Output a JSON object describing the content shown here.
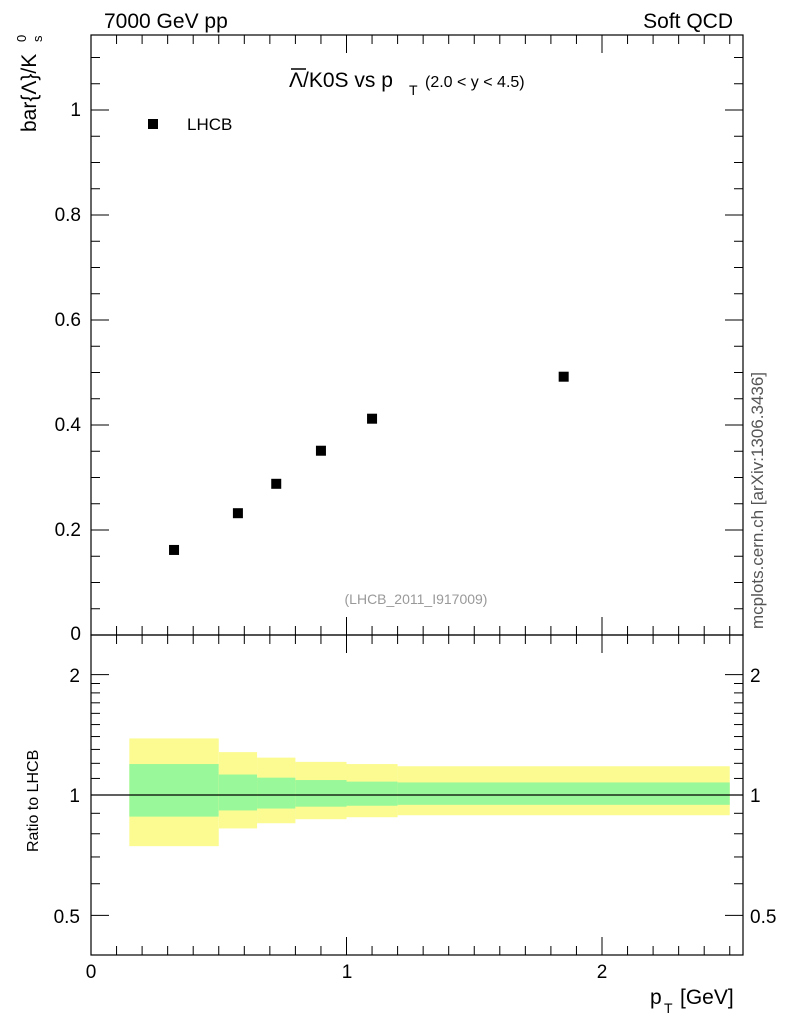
{
  "header": {
    "left": "7000 GeV pp",
    "right": "Soft QCD"
  },
  "side_label": "mcplots.cern.ch [arXiv:1306.3436]",
  "main_panel": {
    "title_main": "Λ/K0S vs p",
    "title_sub": "T",
    "title_range": "(2.0 < y < 4.5)",
    "ylabel": "bar{Λ}/K",
    "ylabel_sup": "0",
    "ylabel_sub": "s",
    "watermark": "(LHCB_2011_I917009)",
    "yticks": [
      "0",
      "0.2",
      "0.4",
      "0.6",
      "0.8",
      "1"
    ]
  },
  "ratio_panel": {
    "ylabel": "Ratio to LHCB",
    "yticks_left": [
      "0.5",
      "1",
      "2"
    ],
    "yticks_right": [
      "0.5",
      "1",
      "2"
    ]
  },
  "xaxis": {
    "label_main": "p",
    "label_sub": "T",
    "label_unit": "[GeV]",
    "ticks": [
      "0",
      "1",
      "2"
    ]
  },
  "chart_data": [
    {
      "type": "scatter",
      "series": [
        {
          "name": "LHCB",
          "marker": "square",
          "color": "#000000",
          "x": [
            0.325,
            0.575,
            0.725,
            0.9,
            1.1,
            1.85
          ],
          "y": [
            0.162,
            0.232,
            0.288,
            0.351,
            0.412,
            0.492
          ]
        }
      ],
      "xlim": [
        0,
        2.55
      ],
      "ylim": [
        0,
        1.14
      ],
      "legend": "top-left"
    },
    {
      "type": "area",
      "reference_line": 1,
      "bins": [
        {
          "x0": 0.15,
          "x1": 0.5,
          "inner": [
            0.883,
            1.195
          ],
          "outer": [
            0.745,
            1.385
          ]
        },
        {
          "x0": 0.5,
          "x1": 0.65,
          "inner": [
            0.915,
            1.125
          ],
          "outer": [
            0.825,
            1.28
          ]
        },
        {
          "x0": 0.65,
          "x1": 0.8,
          "inner": [
            0.925,
            1.105
          ],
          "outer": [
            0.85,
            1.24
          ]
        },
        {
          "x0": 0.8,
          "x1": 1.0,
          "inner": [
            0.935,
            1.09
          ],
          "outer": [
            0.87,
            1.21
          ]
        },
        {
          "x0": 1.0,
          "x1": 1.2,
          "inner": [
            0.94,
            1.08
          ],
          "outer": [
            0.88,
            1.195
          ]
        },
        {
          "x0": 1.2,
          "x1": 2.5,
          "inner": [
            0.945,
            1.075
          ],
          "outer": [
            0.89,
            1.18
          ]
        }
      ],
      "inner_color": "#99f899",
      "outer_color": "#fbfb92",
      "xlim": [
        0,
        2.55
      ],
      "ylim": [
        0.4,
        2.4
      ],
      "yscale": "log"
    }
  ]
}
